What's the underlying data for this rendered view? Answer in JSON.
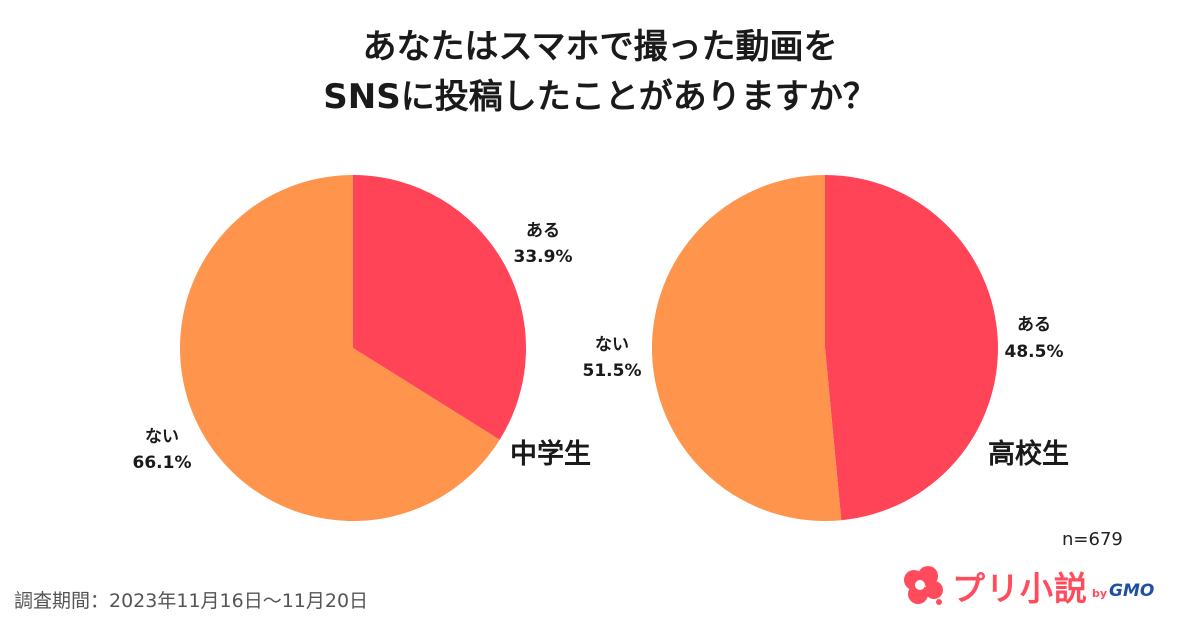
{
  "title": {
    "line1": "あなたはスマホで撮った動画を",
    "line2": "SNSに投稿したことがありますか？"
  },
  "chart_data": [
    {
      "type": "pie",
      "group": "中学生",
      "slices": [
        {
          "label": "ある",
          "value": 33.9,
          "display": "33.9%",
          "color": "#ff4458"
        },
        {
          "label": "ない",
          "value": 66.1,
          "display": "66.1%",
          "color": "#ff944d"
        }
      ]
    },
    {
      "type": "pie",
      "group": "高校生",
      "slices": [
        {
          "label": "ある",
          "value": 48.5,
          "display": "48.5%",
          "color": "#ff4458"
        },
        {
          "label": "ない",
          "value": 51.5,
          "display": "51.5%",
          "color": "#ff944d"
        }
      ]
    }
  ],
  "sample_size": "n=679",
  "survey_period": "調査期間：2023年11月16日〜11月20日",
  "logo": {
    "text": "プリ小説",
    "by": "by",
    "company": "GMO",
    "color": "#ff4b5c",
    "company_color": "#1f4fa3",
    "icon": "cloud-logo-icon"
  }
}
